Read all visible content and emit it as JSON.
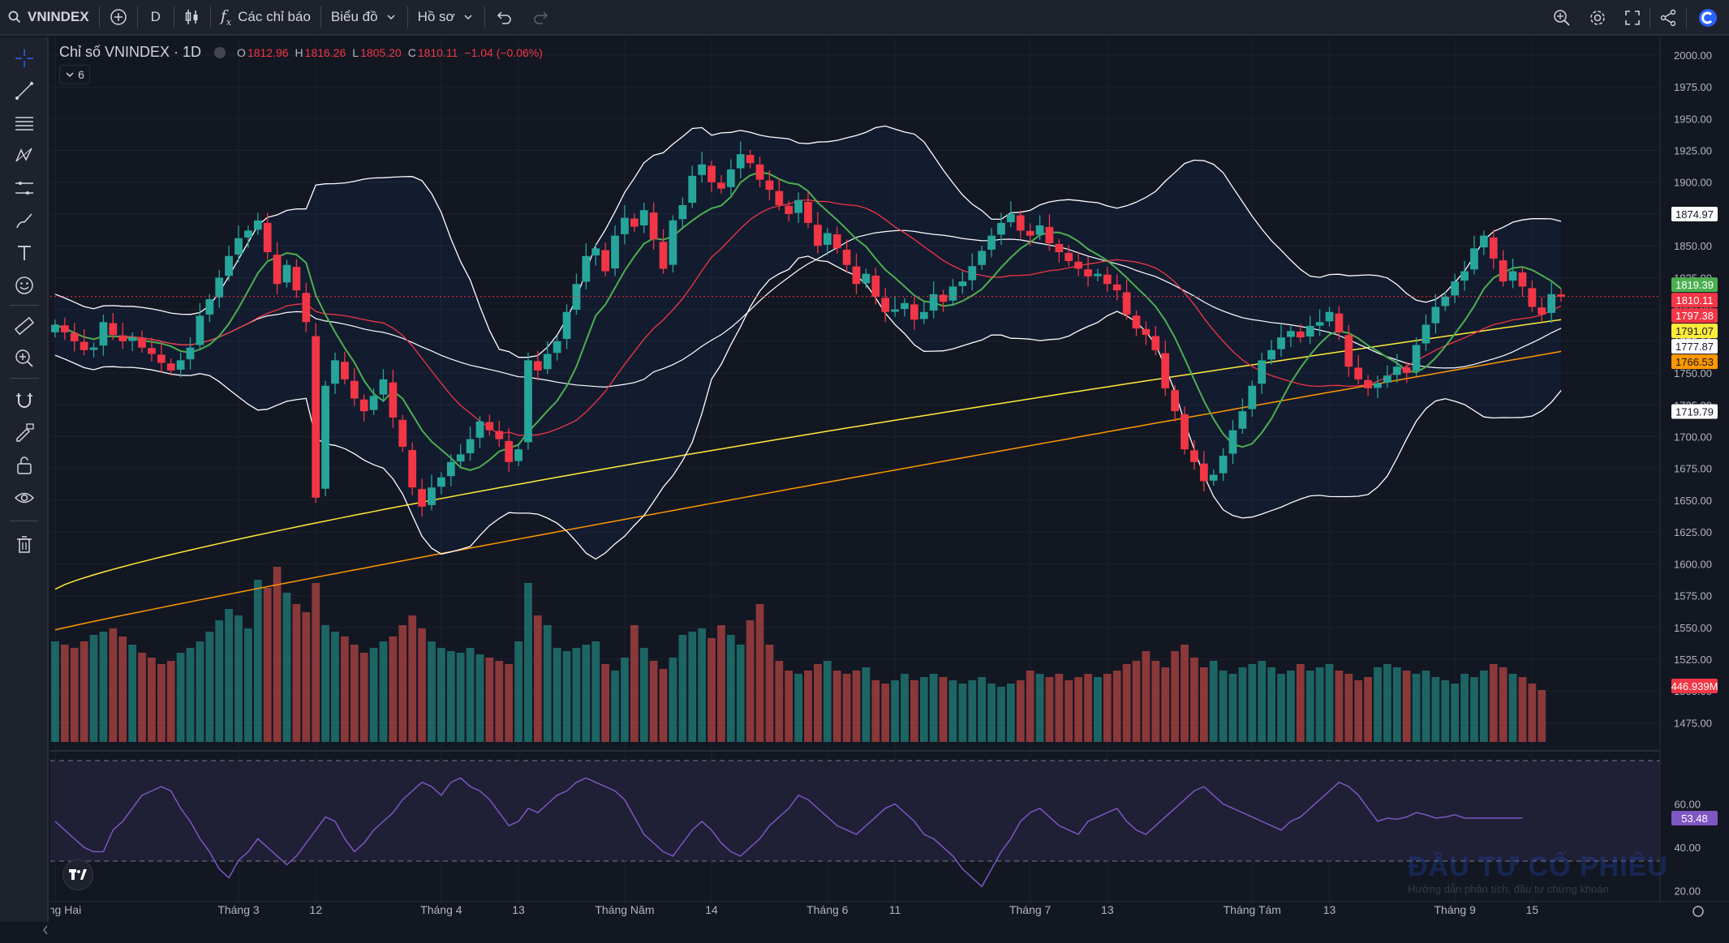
{
  "toolbar": {
    "symbol": "VNINDEX",
    "interval": "D",
    "indicators_label": "Các chỉ báo",
    "chart_type_label": "Biểu đồ",
    "profile_label": "Hồ sơ"
  },
  "legend": {
    "title": "Chỉ số VNINDEX · 1D",
    "open_key": "O",
    "open": "1812.96",
    "high_key": "H",
    "high": "1816.26",
    "low_key": "L",
    "low": "1805.20",
    "close_key": "C",
    "close": "1810.11",
    "change": "−1.04 (−0.06%)",
    "collapsed_count": "6"
  },
  "price_axis": [
    "2000.00",
    "1975.00",
    "1950.00",
    "1925.00",
    "1900.00",
    "1875.00",
    "1850.00",
    "1825.00",
    "1800.00",
    "1775.00",
    "1750.00",
    "1725.00",
    "1700.00",
    "1675.00",
    "1650.00",
    "1625.00",
    "1600.00",
    "1575.00",
    "1550.00",
    "1525.00",
    "1500.00",
    "1475.00"
  ],
  "price_labels": [
    {
      "text": "1874.97",
      "price": 1874.97,
      "bg": "#ffffff",
      "fg": "#131722"
    },
    {
      "text": "1819.39",
      "price": 1819.39,
      "bg": "#4caf50",
      "fg": "#ffffff"
    },
    {
      "text": "1810.11",
      "price": 1810.11,
      "bg": "#f23645",
      "fg": "#ffffff"
    },
    {
      "text": "1797.38",
      "price": 1797.38,
      "bg": "#f23645",
      "fg": "#ffffff"
    },
    {
      "text": "1791.07",
      "price": 1791.07,
      "bg": "#ffeb3b",
      "fg": "#131722"
    },
    {
      "text": "1777.87",
      "price": 1777.87,
      "bg": "#ffffff",
      "fg": "#131722"
    },
    {
      "text": "1766.53",
      "price": 1766.53,
      "bg": "#ff9800",
      "fg": "#131722"
    },
    {
      "text": "1719.79",
      "price": 1719.79,
      "bg": "#ffffff",
      "fg": "#131722"
    }
  ],
  "volume_label": {
    "text": "446.939M",
    "bg": "#f23645",
    "fg": "#ffffff"
  },
  "rsi_axis": [
    "60.00",
    "40.00",
    "20.00"
  ],
  "rsi_label": {
    "text": "53.48",
    "value": 53.48,
    "bg": "#7e57c2",
    "fg": "#ffffff"
  },
  "time_axis": [
    {
      "label": "Tháng Hai",
      "i": 0
    },
    {
      "label": "Tháng 3",
      "i": 19
    },
    {
      "label": "12",
      "i": 27
    },
    {
      "label": "Tháng 4",
      "i": 40
    },
    {
      "label": "13",
      "i": 48
    },
    {
      "label": "Tháng Năm",
      "i": 59
    },
    {
      "label": "14",
      "i": 68
    },
    {
      "label": "Tháng 6",
      "i": 80
    },
    {
      "label": "11",
      "i": 87
    },
    {
      "label": "Tháng 7",
      "i": 101
    },
    {
      "label": "13",
      "i": 109
    },
    {
      "label": "Tháng Tám",
      "i": 124
    },
    {
      "label": "13",
      "i": 132
    },
    {
      "label": "Tháng 9",
      "i": 145
    },
    {
      "label": "15",
      "i": 153
    }
  ],
  "watermark": {
    "title": "ĐẦU TƯ CỔ PHIẾU",
    "subtitle": "Hướng dẫn phân tích, đầu tư chứng khoán"
  },
  "chart_data": {
    "type": "candlestick",
    "symbol": "VNINDEX",
    "interval": "1D",
    "ylim": [
      1460,
      2005
    ],
    "closes": [
      1788,
      1782,
      1775,
      1768,
      1770,
      1790,
      1780,
      1775,
      1778,
      1770,
      1765,
      1758,
      1752,
      1760,
      1770,
      1795,
      1808,
      1825,
      1842,
      1856,
      1862,
      1870,
      1845,
      1820,
      1835,
      1815,
      1790,
      1652,
      1740,
      1760,
      1745,
      1730,
      1720,
      1732,
      1745,
      1715,
      1692,
      1660,
      1645,
      1660,
      1668,
      1680,
      1686,
      1698,
      1712,
      1705,
      1698,
      1680,
      1690,
      1760,
      1752,
      1765,
      1775,
      1798,
      1820,
      1842,
      1848,
      1830,
      1858,
      1872,
      1865,
      1878,
      1855,
      1832,
      1870,
      1882,
      1905,
      1914,
      1900,
      1895,
      1910,
      1922,
      1915,
      1902,
      1894,
      1882,
      1875,
      1886,
      1868,
      1850,
      1860,
      1848,
      1835,
      1820,
      1828,
      1810,
      1798,
      1800,
      1805,
      1792,
      1798,
      1812,
      1806,
      1818,
      1822,
      1834,
      1846,
      1858,
      1868,
      1875,
      1862,
      1858,
      1866,
      1852,
      1845,
      1838,
      1832,
      1826,
      1828,
      1820,
      1815,
      1796,
      1785,
      1780,
      1768,
      1738,
      1720,
      1690,
      1680,
      1665,
      1670,
      1685,
      1705,
      1720,
      1740,
      1760,
      1768,
      1778,
      1783,
      1778,
      1787,
      1790,
      1798,
      1782,
      1755,
      1745,
      1738,
      1742,
      1748,
      1755,
      1750,
      1772,
      1788,
      1802,
      1810,
      1822,
      1830,
      1848,
      1858,
      1840,
      1822,
      1830,
      1818,
      1802,
      1796,
      1812,
      1810
    ],
    "volumes_rel": [
      0.62,
      0.6,
      0.58,
      0.62,
      0.66,
      0.68,
      0.7,
      0.65,
      0.6,
      0.55,
      0.52,
      0.48,
      0.5,
      0.55,
      0.58,
      0.62,
      0.68,
      0.75,
      0.82,
      0.78,
      0.7,
      1.0,
      0.95,
      1.08,
      0.92,
      0.85,
      0.8,
      0.98,
      0.72,
      0.68,
      0.65,
      0.6,
      0.55,
      0.58,
      0.62,
      0.65,
      0.72,
      0.78,
      0.7,
      0.62,
      0.58,
      0.56,
      0.55,
      0.58,
      0.54,
      0.52,
      0.5,
      0.48,
      0.62,
      0.98,
      0.78,
      0.72,
      0.58,
      0.56,
      0.58,
      0.6,
      0.62,
      0.48,
      0.44,
      0.52,
      0.72,
      0.58,
      0.5,
      0.45,
      0.52,
      0.66,
      0.68,
      0.7,
      0.64,
      0.72,
      0.66,
      0.6,
      0.75,
      0.85,
      0.6,
      0.5,
      0.44,
      0.42,
      0.44,
      0.48,
      0.5,
      0.44,
      0.42,
      0.44,
      0.46,
      0.38,
      0.36,
      0.38,
      0.42,
      0.38,
      0.4,
      0.42,
      0.4,
      0.38,
      0.36,
      0.38,
      0.4,
      0.36,
      0.34,
      0.36,
      0.38,
      0.44,
      0.42,
      0.4,
      0.42,
      0.38,
      0.4,
      0.42,
      0.4,
      0.42,
      0.44,
      0.48,
      0.5,
      0.56,
      0.5,
      0.46,
      0.56,
      0.6,
      0.52,
      0.46,
      0.5,
      0.44,
      0.42,
      0.46,
      0.48,
      0.5,
      0.46,
      0.42,
      0.44,
      0.48,
      0.44,
      0.46,
      0.48,
      0.44,
      0.42,
      0.38,
      0.4,
      0.46,
      0.48,
      0.46,
      0.44,
      0.42,
      0.44,
      0.4,
      0.38,
      0.36,
      0.42,
      0.4,
      0.44,
      0.48,
      0.46,
      0.42,
      0.4,
      0.36,
      0.32
    ],
    "rsi": [
      52,
      48,
      44,
      40,
      38,
      38,
      48,
      52,
      58,
      64,
      66,
      68,
      66,
      58,
      52,
      44,
      38,
      30,
      26,
      34,
      38,
      44,
      40,
      36,
      32,
      36,
      42,
      48,
      54,
      52,
      44,
      38,
      42,
      48,
      52,
      56,
      62,
      66,
      70,
      68,
      64,
      70,
      72,
      68,
      66,
      62,
      56,
      50,
      52,
      58,
      56,
      60,
      64,
      66,
      70,
      72,
      70,
      68,
      66,
      62,
      54,
      46,
      42,
      38,
      36,
      42,
      48,
      52,
      48,
      42,
      38,
      36,
      40,
      44,
      50,
      54,
      58,
      64,
      62,
      58,
      54,
      50,
      48,
      46,
      50,
      54,
      58,
      60,
      56,
      52,
      46,
      44,
      40,
      36,
      30,
      26,
      22,
      30,
      38,
      44,
      52,
      56,
      58,
      54,
      50,
      48,
      46,
      52,
      54,
      56,
      58,
      52,
      48,
      46,
      50,
      54,
      58,
      62,
      66,
      68,
      64,
      60,
      58,
      56,
      54,
      52,
      50,
      48,
      52,
      54,
      58,
      62,
      66,
      70,
      68,
      64,
      58,
      52,
      53.48,
      53,
      54,
      56,
      55,
      53.48,
      54,
      55,
      53.48,
      53.48,
      53.48,
      53.48,
      53.48,
      53.48,
      53.48
    ],
    "overlays": [
      "SMA 20",
      "SMA 50",
      "SMA 100",
      "SMA 200",
      "Bollinger Bands"
    ],
    "last_ohlc": {
      "open": 1812.96,
      "high": 1816.26,
      "low": 1805.2,
      "close": 1810.11
    }
  }
}
